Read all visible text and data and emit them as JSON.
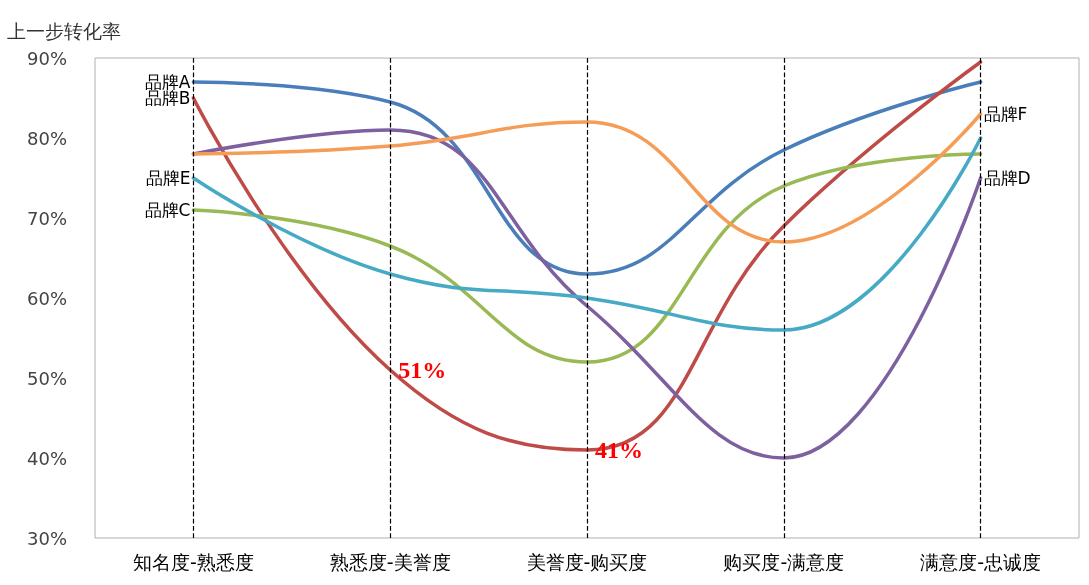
{
  "chart_data": {
    "type": "line",
    "ylabel": "上一步转化率",
    "categories": [
      "知名度-熟悉度",
      "熟悉度-美誉度",
      "美誉度-购买度",
      "购买度-满意度",
      "满意度-忠诚度"
    ],
    "series": [
      {
        "name": "品牌A",
        "color": "#4a7ebb",
        "values": [
          87,
          84.5,
          63,
          78.5,
          87
        ]
      },
      {
        "name": "品牌B",
        "color": "#be4b48",
        "values": [
          85,
          51,
          41,
          69,
          89.5
        ]
      },
      {
        "name": "品牌C",
        "color": "#98b954",
        "values": [
          71,
          66.5,
          52,
          74,
          78
        ]
      },
      {
        "name": "品牌D",
        "color": "#7d60a0",
        "values": [
          78,
          81,
          59,
          40,
          75
        ]
      },
      {
        "name": "品牌E",
        "color": "#46aac5",
        "values": [
          75,
          63,
          60,
          56,
          80
        ]
      },
      {
        "name": "品牌F",
        "color": "#f59d56",
        "values": [
          78,
          79,
          82,
          67,
          83
        ]
      }
    ],
    "ylim": [
      30,
      90
    ],
    "yticks": [
      {
        "value": 30,
        "label": "30%"
      },
      {
        "value": 40,
        "label": "40%"
      },
      {
        "value": 50,
        "label": "50%"
      },
      {
        "value": 60,
        "label": "60%"
      },
      {
        "value": 70,
        "label": "70%"
      },
      {
        "value": 80,
        "label": "80%"
      },
      {
        "value": 90,
        "label": "90%"
      }
    ],
    "grid": false,
    "legend": false,
    "marker": "none",
    "line_style": "solid",
    "ref_lines": [
      {
        "axis": "x",
        "value": "知名度-熟悉度",
        "color": "#000000",
        "line_style": "dashed"
      },
      {
        "axis": "x",
        "value": "熟悉度-美誉度",
        "color": "#000000",
        "line_style": "dashed"
      },
      {
        "axis": "x",
        "value": "美誉度-购买度",
        "color": "#000000",
        "line_style": "dashed"
      },
      {
        "axis": "x",
        "value": "购买度-满意度",
        "color": "#000000",
        "line_style": "dashed"
      },
      {
        "axis": "x",
        "value": "满意度-忠诚度",
        "color": "#000000",
        "line_style": "dashed"
      }
    ],
    "annotations": [
      {
        "text": "51%",
        "x": "熟悉度-美誉度",
        "y": 51
      },
      {
        "text": "41%",
        "x": "美誉度-购买度",
        "y": 41
      }
    ]
  }
}
